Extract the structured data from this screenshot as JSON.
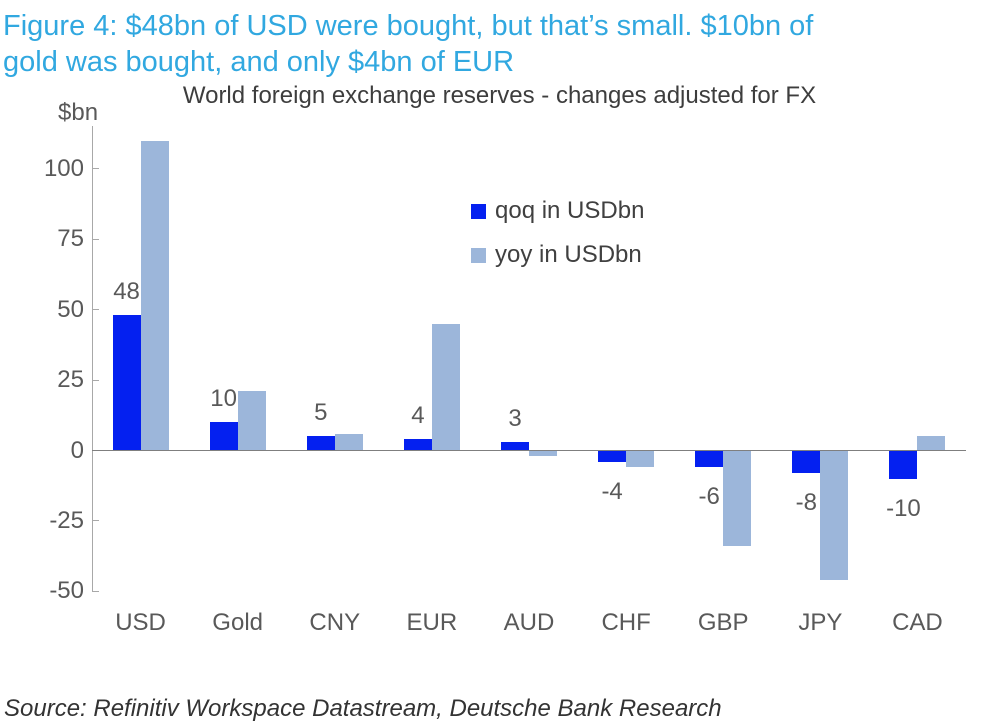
{
  "figure_title_lines": [
    "Figure 4: $48bn of USD were bought, but that’s small. $10bn of",
    "gold was bought, and only $4bn of EUR"
  ],
  "source_note": "Source: Refinitiv Workspace Datastream, Deutsche Bank Research",
  "colors": {
    "figure_title_accent": "#31a8e0",
    "qoq_bar": "#0420f0",
    "yoy_bar": "#9cb6da",
    "axis_line": "#a8a8a8",
    "zero_line": "#7f7f7f",
    "tick_text": "#595959",
    "chart_title_text": "#3d3d3d",
    "legend_text": "#404040",
    "source_text": "#333333"
  },
  "chart_data": {
    "type": "bar",
    "title": "World foreign exchange reserves - changes adjusted for FX",
    "ylabel": "$bn",
    "xlabel": "",
    "categories": [
      "USD",
      "Gold",
      "CNY",
      "EUR",
      "AUD",
      "CHF",
      "GBP",
      "JPY",
      "CAD"
    ],
    "series": [
      {
        "name": "qoq in USDbn",
        "color": "#0420f0",
        "values": [
          48,
          10,
          5,
          4,
          3,
          -4,
          -6,
          -8,
          -10
        ],
        "data_labels_shown": true
      },
      {
        "name": "yoy in USDbn",
        "color": "#9cb6da",
        "values": [
          110,
          21,
          6,
          45,
          -2,
          -6,
          -34,
          -46,
          5
        ],
        "data_labels_shown": false
      }
    ],
    "yticks": [
      100,
      75,
      50,
      25,
      0,
      -25,
      -50
    ],
    "ylim": [
      -50,
      115
    ],
    "grid": false,
    "legend_position": "upper-center"
  }
}
